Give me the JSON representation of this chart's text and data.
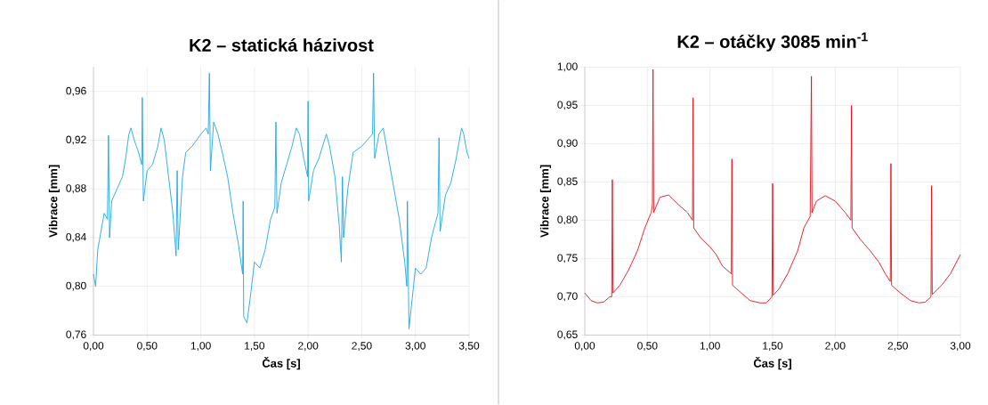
{
  "chart_data": [
    {
      "type": "line",
      "title": "K2 – statická házivost",
      "xlabel": "Čas [s]",
      "ylabel": "Vibrace [mm]",
      "grid": true,
      "xlim": [
        0,
        3.5
      ],
      "ylim": [
        0.76,
        0.98
      ],
      "xticks": [
        {
          "value": 0,
          "label": "0,00"
        },
        {
          "value": 0.5,
          "label": "0,50"
        },
        {
          "value": 1,
          "label": "1,00"
        },
        {
          "value": 1.5,
          "label": "1,50"
        },
        {
          "value": 2,
          "label": "2,00"
        },
        {
          "value": 2.5,
          "label": "2,50"
        },
        {
          "value": 3,
          "label": "3,00"
        },
        {
          "value": 3.5,
          "label": "3,50"
        }
      ],
      "yticks": [
        {
          "value": 0.76,
          "label": "0,76"
        },
        {
          "value": 0.8,
          "label": "0,80"
        },
        {
          "value": 0.84,
          "label": "0,84"
        },
        {
          "value": 0.88,
          "label": "0,88"
        },
        {
          "value": 0.92,
          "label": "0,92"
        },
        {
          "value": 0.96,
          "label": "0,96"
        }
      ],
      "x": [
        0.0,
        0.02,
        0.04,
        0.07,
        0.1,
        0.13,
        0.14,
        0.15,
        0.17,
        0.22,
        0.27,
        0.3,
        0.33,
        0.35,
        0.38,
        0.42,
        0.45,
        0.455,
        0.465,
        0.5,
        0.55,
        0.6,
        0.63,
        0.66,
        0.7,
        0.74,
        0.77,
        0.78,
        0.79,
        0.83,
        0.86,
        0.92,
        1.0,
        1.05,
        1.07,
        1.08,
        1.09,
        1.12,
        1.16,
        1.2,
        1.25,
        1.3,
        1.35,
        1.39,
        1.395,
        1.4,
        1.43,
        1.46,
        1.5,
        1.55,
        1.6,
        1.65,
        1.69,
        1.7,
        1.71,
        1.75,
        1.8,
        1.85,
        1.89,
        1.92,
        1.96,
        1.995,
        2.0,
        2.005,
        2.05,
        2.1,
        2.17,
        2.2,
        2.25,
        2.29,
        2.31,
        2.32,
        2.33,
        2.37,
        2.42,
        2.5,
        2.55,
        2.6,
        2.61,
        2.62,
        2.66,
        2.7,
        2.75,
        2.8,
        2.85,
        2.9,
        2.92,
        2.925,
        2.94,
        2.97,
        3.0,
        3.05,
        3.1,
        3.15,
        3.21,
        3.22,
        3.23,
        3.28,
        3.33,
        3.38,
        3.43,
        3.45,
        3.48,
        3.5
      ],
      "series": [
        {
          "color": "#1ea7e1",
          "values": [
            0.81,
            0.8,
            0.83,
            0.845,
            0.86,
            0.855,
            0.924,
            0.84,
            0.87,
            0.88,
            0.89,
            0.905,
            0.925,
            0.93,
            0.92,
            0.91,
            0.9,
            0.955,
            0.87,
            0.895,
            0.9,
            0.915,
            0.93,
            0.92,
            0.89,
            0.86,
            0.825,
            0.895,
            0.83,
            0.89,
            0.91,
            0.915,
            0.925,
            0.93,
            0.925,
            0.975,
            0.895,
            0.935,
            0.925,
            0.91,
            0.89,
            0.86,
            0.835,
            0.81,
            0.87,
            0.775,
            0.77,
            0.79,
            0.82,
            0.815,
            0.83,
            0.855,
            0.865,
            0.935,
            0.86,
            0.885,
            0.9,
            0.915,
            0.93,
            0.925,
            0.905,
            0.89,
            0.952,
            0.87,
            0.895,
            0.905,
            0.925,
            0.915,
            0.89,
            0.85,
            0.82,
            0.89,
            0.84,
            0.88,
            0.91,
            0.915,
            0.92,
            0.925,
            0.975,
            0.905,
            0.925,
            0.93,
            0.905,
            0.88,
            0.855,
            0.82,
            0.8,
            0.87,
            0.765,
            0.79,
            0.815,
            0.81,
            0.815,
            0.84,
            0.86,
            0.922,
            0.845,
            0.875,
            0.885,
            0.905,
            0.93,
            0.925,
            0.91,
            0.905
          ]
        }
      ]
    },
    {
      "type": "line",
      "title": "K2 – otáčky 3085 min$^{-1}$",
      "xlabel": "Čas [s]",
      "ylabel": "Vibrace [mm]",
      "grid": true,
      "xlim": [
        0,
        3
      ],
      "ylim": [
        0.65,
        1.0
      ],
      "xticks": [
        {
          "value": 0,
          "label": "0,00"
        },
        {
          "value": 0.5,
          "label": "0,50"
        },
        {
          "value": 1,
          "label": "1,00"
        },
        {
          "value": 1.5,
          "label": "1,50"
        },
        {
          "value": 2,
          "label": "2,00"
        },
        {
          "value": 2.5,
          "label": "2,50"
        },
        {
          "value": 3,
          "label": "3,00"
        }
      ],
      "yticks": [
        {
          "value": 0.65,
          "label": "0,65"
        },
        {
          "value": 0.7,
          "label": "0,70"
        },
        {
          "value": 0.75,
          "label": "0,75"
        },
        {
          "value": 0.8,
          "label": "0,80"
        },
        {
          "value": 0.85,
          "label": "0,85"
        },
        {
          "value": 0.9,
          "label": "0,90"
        },
        {
          "value": 0.95,
          "label": "0,95"
        },
        {
          "value": 1.0,
          "label": "1,00"
        }
      ],
      "x": [
        0.0,
        0.05,
        0.1,
        0.15,
        0.2,
        0.215,
        0.22,
        0.225,
        0.28,
        0.35,
        0.42,
        0.48,
        0.53,
        0.54,
        0.545,
        0.55,
        0.6,
        0.67,
        0.75,
        0.82,
        0.86,
        0.865,
        0.87,
        0.92,
        1.0,
        1.05,
        1.1,
        1.17,
        1.175,
        1.18,
        1.25,
        1.32,
        1.4,
        1.45,
        1.495,
        1.5,
        1.505,
        1.55,
        1.62,
        1.7,
        1.75,
        1.8,
        1.81,
        1.815,
        1.85,
        1.92,
        2.0,
        2.08,
        2.125,
        2.13,
        2.135,
        2.2,
        2.28,
        2.35,
        2.4,
        2.44,
        2.445,
        2.45,
        2.52,
        2.6,
        2.67,
        2.72,
        2.765,
        2.77,
        2.775,
        2.85,
        2.92,
        3.0
      ],
      "series": [
        {
          "color": "#e4101a",
          "values": [
            0.705,
            0.695,
            0.692,
            0.693,
            0.7,
            0.7,
            0.853,
            0.705,
            0.715,
            0.735,
            0.76,
            0.79,
            0.81,
            0.82,
            0.997,
            0.81,
            0.83,
            0.833,
            0.82,
            0.81,
            0.8,
            0.96,
            0.79,
            0.778,
            0.765,
            0.755,
            0.74,
            0.73,
            0.88,
            0.715,
            0.705,
            0.695,
            0.692,
            0.692,
            0.7,
            0.848,
            0.702,
            0.71,
            0.73,
            0.76,
            0.79,
            0.805,
            0.988,
            0.81,
            0.825,
            0.832,
            0.825,
            0.81,
            0.8,
            0.95,
            0.79,
            0.775,
            0.76,
            0.745,
            0.73,
            0.72,
            0.874,
            0.715,
            0.705,
            0.695,
            0.692,
            0.693,
            0.7,
            0.845,
            0.703,
            0.715,
            0.73,
            0.755
          ]
        }
      ]
    }
  ]
}
